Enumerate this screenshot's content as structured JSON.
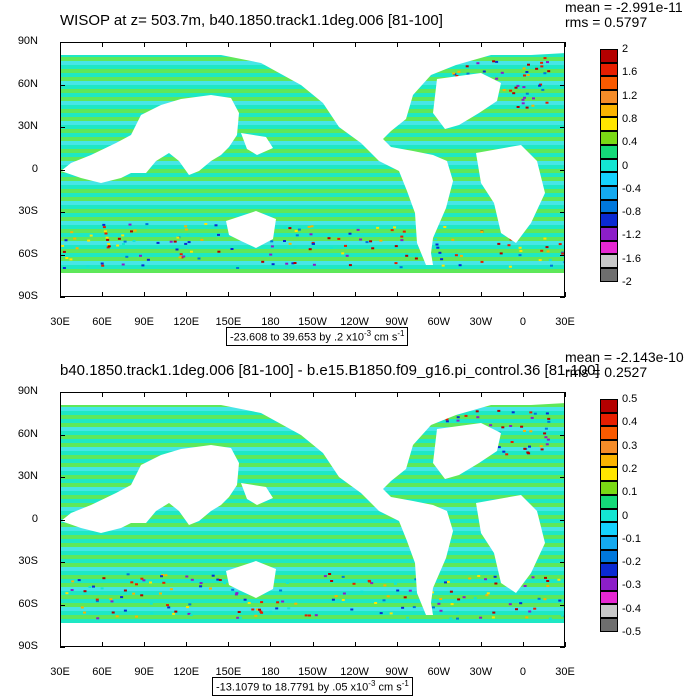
{
  "panels": [
    {
      "title": "WISOP at z= 503.7m, b40.1850.track1.1deg.006 [81-100]",
      "mean": "mean = -2.991e-11",
      "rms": "rms = 0.5797",
      "caption_main": "-23.608 to 39.653 by .2 x10",
      "caption_exp": "-3",
      "caption_unit": " cm s",
      "caption_unit_exp": "-1",
      "colorbar_labels": [
        "2",
        "1.6",
        "1.2",
        "0.8",
        "0.4",
        "0",
        "-0.4",
        "-0.8",
        "-1.2",
        "-1.6",
        "-2"
      ]
    },
    {
      "title": "b40.1850.track1.1deg.006 [81-100] - b.e15.B1850.f09_g16.pi_control.36 [81-100]",
      "mean": "mean = -2.143e-10",
      "rms": "rms = 0.2527",
      "caption_main": "-13.1079 to 18.7791 by .05 x10",
      "caption_exp": "-3",
      "caption_unit": " cm s",
      "caption_unit_exp": "-1",
      "colorbar_labels": [
        "0.5",
        "0.4",
        "0.3",
        "0.2",
        "0.1",
        "0",
        "-0.1",
        "-0.2",
        "-0.3",
        "-0.4",
        "-0.5"
      ]
    }
  ],
  "lat_labels": [
    "90N",
    "60N",
    "30N",
    "0",
    "30S",
    "60S",
    "90S"
  ],
  "lon_labels": [
    "30E",
    "60E",
    "90E",
    "120E",
    "150E",
    "180",
    "150W",
    "120W",
    "90W",
    "60W",
    "30W",
    "0",
    "30E"
  ],
  "colorbar_colors": [
    "#b40000",
    "#e61e00",
    "#fa5a00",
    "#f58c28",
    "#fab400",
    "#ffe600",
    "#7ad814",
    "#14d878",
    "#14e6d2",
    "#14d2ff",
    "#14aaf0",
    "#0078dc",
    "#0a2ad2",
    "#8c1ec8",
    "#e628d2",
    "#c8c8c8",
    "#6e6e6e"
  ],
  "map_colors": {
    "ocean_main": "#1ee8c4",
    "ocean_alt": "#5ee85a",
    "ocean_light": "#46e6e6",
    "land": "#ffffff"
  }
}
